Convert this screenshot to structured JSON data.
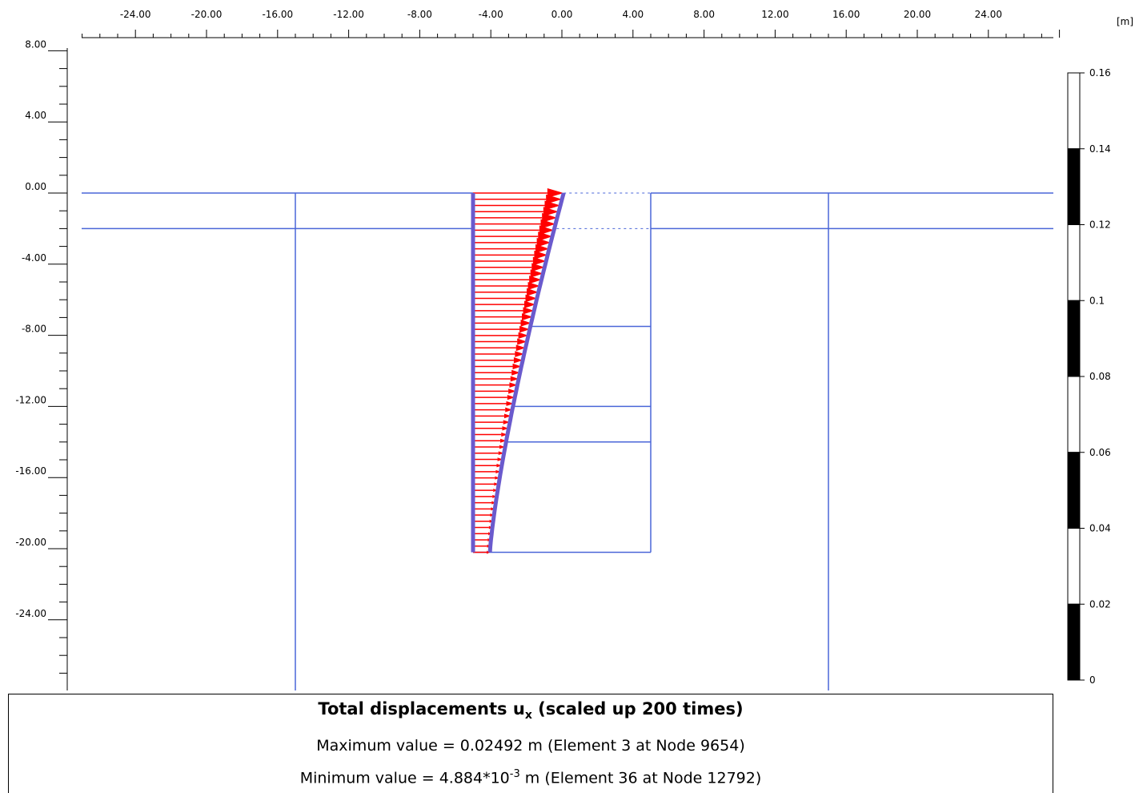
{
  "units_label": "[m]",
  "x_axis": {
    "tick_labels": [
      "-24.00",
      "-20.00",
      "-16.00",
      "-12.00",
      "-8.00",
      "-4.00",
      "0.00",
      "4.00",
      "8.00",
      "12.00",
      "16.00",
      "20.00",
      "24.00"
    ],
    "tick_values": [
      -24,
      -20,
      -16,
      -12,
      -8,
      -4,
      0,
      4,
      8,
      12,
      16,
      20,
      24
    ],
    "range": [
      -27,
      28.4
    ]
  },
  "y_axis": {
    "tick_labels": [
      "8.00",
      "4.00",
      "0.00",
      "-4.00",
      "-8.00",
      "-12.00",
      "-16.00",
      "-20.00",
      "-24.00"
    ],
    "tick_values": [
      8,
      4,
      0,
      -4,
      -8,
      -12,
      -16,
      -20,
      -24
    ],
    "range": [
      -28,
      9
    ]
  },
  "legend": {
    "labels": [
      "0.16",
      "0.14",
      "0.12",
      "0.1",
      "0.08",
      "0.06",
      "0.04",
      "0.02",
      "0"
    ],
    "values": [
      0.16,
      0.14,
      0.12,
      0.1,
      0.08,
      0.06,
      0.04,
      0.02,
      0
    ],
    "band_colors": [
      "#ffffff",
      "#000000",
      "#ffffff",
      "#000000",
      "#ffffff",
      "#000000",
      "#ffffff",
      "#000000"
    ]
  },
  "model": {
    "line_color": "#4a66d8",
    "wall_color": "#6a5acd",
    "arrow_color": "#ff0000",
    "horizontal_layers_y": [
      0,
      -2
    ],
    "excavation_levels_y": [
      -7.5,
      -12,
      -14
    ],
    "wall_x": -5,
    "wall_bottom_y": -20.2,
    "excavation_right_x": 5,
    "boundary_x": [
      -15,
      15
    ],
    "max_displacement_scaled_x": 0.1,
    "min_displacement_scaled_x": -4.05
  },
  "info": {
    "title_prefix": "Total displacements u",
    "title_sub": "x",
    "title_suffix": " (scaled up 200 times)",
    "max_text": "Maximum value = 0.02492 m (Element 3 at Node 9654)",
    "min_prefix": "Minimum value = 4.884*10",
    "min_sup": "-3",
    "min_suffix": " m (Element 36 at Node 12792)"
  }
}
